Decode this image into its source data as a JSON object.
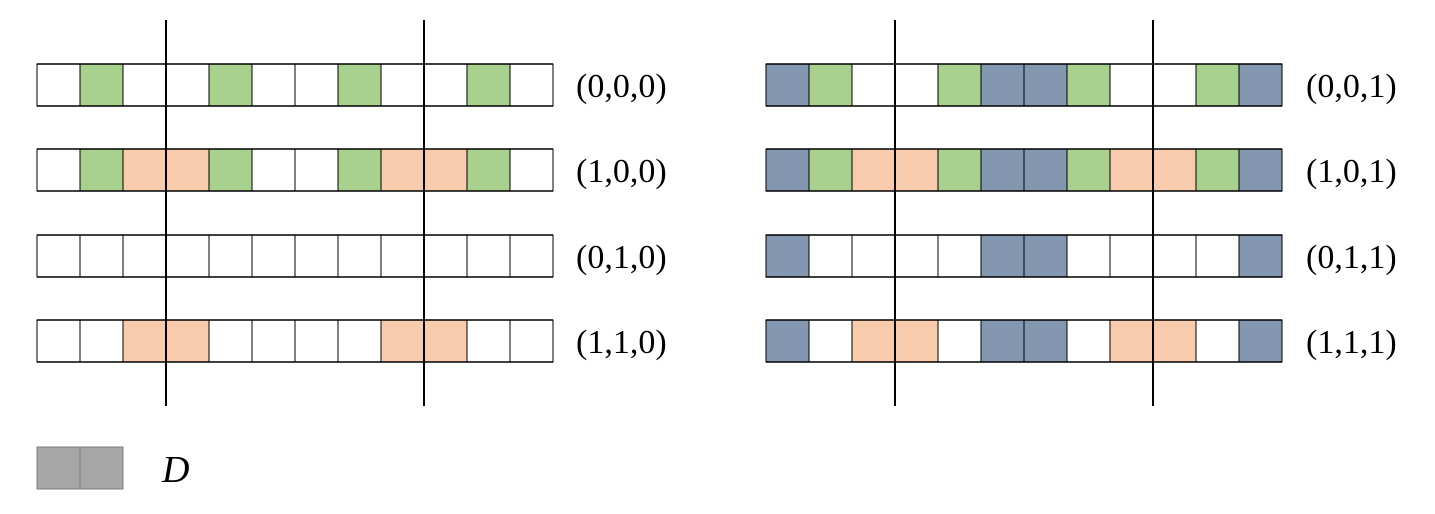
{
  "colors": {
    "green": "#a9d18e",
    "peach": "#f8cbad",
    "blue": "#8497b0",
    "empty": "#ffffff",
    "gray": "#a6a6a6",
    "line": "#000000"
  },
  "panels": [
    {
      "rows": [
        {
          "label": "(0,0,0)",
          "cells": [
            "empty",
            "green",
            "empty",
            "empty",
            "green",
            "empty",
            "empty",
            "green",
            "empty",
            "empty",
            "green",
            "empty"
          ]
        },
        {
          "label": "(1,0,0)",
          "cells": [
            "empty",
            "green",
            "peach",
            "peach",
            "green",
            "empty",
            "empty",
            "green",
            "peach",
            "peach",
            "green",
            "empty"
          ]
        },
        {
          "label": "(0,1,0)",
          "cells": [
            "empty",
            "empty",
            "empty",
            "empty",
            "empty",
            "empty",
            "empty",
            "empty",
            "empty",
            "empty",
            "empty",
            "empty"
          ]
        },
        {
          "label": "(1,1,0)",
          "cells": [
            "empty",
            "empty",
            "peach",
            "peach",
            "empty",
            "empty",
            "empty",
            "empty",
            "peach",
            "peach",
            "empty",
            "empty"
          ]
        }
      ]
    },
    {
      "rows": [
        {
          "label": "(0,0,1)",
          "cells": [
            "blue",
            "green",
            "empty",
            "empty",
            "green",
            "blue",
            "blue",
            "green",
            "empty",
            "empty",
            "green",
            "blue"
          ]
        },
        {
          "label": "(1,0,1)",
          "cells": [
            "blue",
            "green",
            "peach",
            "peach",
            "green",
            "blue",
            "blue",
            "green",
            "peach",
            "peach",
            "green",
            "blue"
          ]
        },
        {
          "label": "(0,1,1)",
          "cells": [
            "blue",
            "empty",
            "empty",
            "empty",
            "empty",
            "blue",
            "blue",
            "empty",
            "empty",
            "empty",
            "empty",
            "blue"
          ]
        },
        {
          "label": "(1,1,1)",
          "cells": [
            "blue",
            "empty",
            "peach",
            "peach",
            "empty",
            "blue",
            "blue",
            "empty",
            "peach",
            "peach",
            "empty",
            "blue"
          ]
        }
      ]
    }
  ],
  "legend": {
    "color": "gray",
    "cells": 2,
    "label": "D"
  }
}
